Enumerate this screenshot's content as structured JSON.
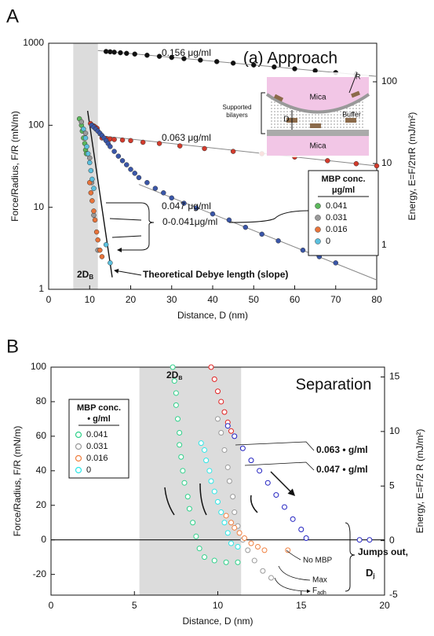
{
  "chart_data": [
    {
      "type": "scatter",
      "panel_label": "A",
      "title": "(a) Approach",
      "xlabel": "Distance, D (nm)",
      "ylabel": "Force/Radius, F/R (mN/m)",
      "y2label": "Energy, E=F/2πR (mJ/m²)",
      "xlim": [
        0,
        80
      ],
      "ylim": [
        1,
        1000
      ],
      "y2lim": [
        0.29,
        296
      ],
      "log_y": true,
      "xticks": [
        0,
        10,
        20,
        30,
        40,
        50,
        60,
        70,
        80
      ],
      "yticks": [
        1,
        10,
        100,
        1000
      ],
      "y2ticks": [
        1,
        10,
        100
      ],
      "shaded_band": [
        6,
        12
      ],
      "marker": "filled",
      "legend": {
        "title": "MBP conc.",
        "subtitle": "μg/ml"
      },
      "series": [
        {
          "name": "0.041",
          "color": "#5cb85c",
          "x": [
            7.5,
            8,
            8.2,
            8.5,
            8.8,
            9,
            9.2
          ],
          "y": [
            120,
            100,
            85,
            70,
            60,
            50,
            45
          ]
        },
        {
          "name": "0.031",
          "color": "#9a9a9a",
          "x": [
            8,
            9,
            10,
            10.5,
            11,
            12
          ],
          "y": [
            110,
            80,
            40,
            20,
            8,
            3
          ]
        },
        {
          "name": "0.016",
          "color": "#e8743b",
          "x": [
            10,
            10.3,
            10.6,
            11,
            11.3,
            11.7,
            12,
            12.5,
            13
          ],
          "y": [
            20,
            15,
            12,
            9,
            7,
            5,
            4,
            3,
            2.5
          ]
        },
        {
          "name": "0",
          "color": "#5bc0de",
          "x": [
            8.5,
            9,
            9.3,
            9.6,
            10,
            10.3,
            10.6,
            11,
            14,
            15
          ],
          "y": [
            90,
            70,
            55,
            45,
            35,
            28,
            22,
            17,
            3.5,
            2.1
          ]
        }
      ],
      "labeled_series": [
        {
          "name": "0.156 μg/ml",
          "color": "#111111",
          "x": [
            14,
            15,
            16,
            17.5,
            19,
            21,
            24,
            27,
            30,
            33,
            37,
            41,
            45,
            50,
            55,
            60,
            65,
            70,
            75
          ],
          "y": [
            794,
            786,
            778,
            766,
            753,
            738,
            714,
            692,
            671,
            649,
            623,
            597,
            572,
            543,
            514,
            488,
            463,
            439,
            416
          ]
        },
        {
          "name": "0.063 μg/ml",
          "color": "#d33b2c",
          "x": [
            10.2,
            10.6,
            11,
            11.4,
            11.8,
            13,
            14,
            15,
            16,
            18,
            20,
            23,
            27,
            32,
            38,
            45,
            52,
            60,
            68,
            75,
            80
          ],
          "y": [
            105,
            100,
            98,
            95,
            92,
            70,
            69,
            68,
            67,
            66,
            65,
            62,
            60,
            56,
            52,
            48,
            45,
            41,
            37,
            34,
            32
          ]
        },
        {
          "name": "0.047 μg/ml",
          "color": "#3a56a8",
          "x": [
            10.5,
            11,
            11.5,
            12,
            12.5,
            13,
            13.5,
            14,
            14.5,
            15,
            16,
            17,
            18,
            19,
            20,
            21,
            22,
            24,
            26,
            28,
            30,
            33,
            36,
            40,
            44,
            48,
            52,
            56,
            62,
            66,
            70
          ],
          "y": [
            100,
            95,
            90,
            85,
            80,
            75,
            70,
            65,
            60,
            55,
            48,
            42,
            37,
            33,
            29,
            26,
            23,
            20,
            17,
            15,
            13,
            11.2,
            9.8,
            8.3,
            7,
            5.7,
            4.7,
            3.9,
            3,
            2.5,
            2.1
          ]
        }
      ],
      "fit_lines": [
        {
          "color": "#888888",
          "x": [
            12,
            80
          ],
          "y": [
            815,
            395
          ]
        },
        {
          "color": "#888888",
          "x": [
            12,
            80
          ],
          "y": [
            75,
            32
          ]
        },
        {
          "color": "#888888",
          "x": [
            22,
            80
          ],
          "y": [
            19,
            1.3
          ]
        },
        {
          "color": "#111111",
          "x": [
            9.5,
            15.5
          ],
          "y": [
            150,
            1.4
          ]
        }
      ],
      "annotations": [
        "0-0.041μg/ml",
        {
          "text": "2D",
          "sub": "B"
        },
        "Theoretical Debye length (slope)"
      ],
      "inset": {
        "labels": [
          "Mica",
          "Supported",
          "bilayers",
          "Buffer",
          "D",
          "R",
          "Mica"
        ]
      }
    },
    {
      "type": "scatter",
      "panel_label": "B",
      "title": "Separation",
      "xlabel": "Distance, D (nm)",
      "ylabel": "Force/Radius, F/R (mN/m)",
      "y2label": "Energy, E=F/2  R (mJ/m²)",
      "xlim": [
        0,
        20
      ],
      "ylim": [
        -32,
        100
      ],
      "y2lim": [
        -5,
        15.9
      ],
      "xticks": [
        0,
        5,
        10,
        15,
        20
      ],
      "yticks": [
        -20,
        0,
        20,
        40,
        60,
        80,
        100
      ],
      "y2ticks": [
        -5,
        0,
        5,
        10,
        15
      ],
      "shaded_band": [
        5.3,
        11.4
      ],
      "hline": 0,
      "marker": "hollow",
      "legend": {
        "title": "MBP conc.",
        "subtitle": "• g/ml"
      },
      "series": [
        {
          "name": "0.041",
          "color": "#2fd18a",
          "x": [
            7.3,
            7.4,
            7.5,
            7.5,
            7.6,
            7.7,
            7.7,
            7.8,
            7.9,
            8.0,
            8.2,
            8.3,
            8.5,
            8.7,
            8.9,
            9.2,
            9.8,
            10.5,
            11.2
          ],
          "y": [
            100,
            92,
            85,
            78,
            70,
            62,
            55,
            48,
            40,
            33,
            25,
            18,
            10,
            2,
            -5,
            -10,
            -12,
            -13,
            -13
          ]
        },
        {
          "name": "0.031",
          "color": "#9a9a9a",
          "x": [
            10.0,
            10.2,
            10.4,
            10.6,
            10.7,
            10.9,
            11.0,
            11.2,
            11.5,
            11.8,
            12.2,
            12.7,
            13.2
          ],
          "y": [
            70,
            62,
            52,
            42,
            34,
            25,
            16,
            8,
            0,
            -6,
            -12,
            -18,
            -22
          ]
        },
        {
          "name": "0.016",
          "color": "#f08040",
          "x": [
            10.5,
            10.8,
            11.0,
            11.3,
            11.6,
            12.0,
            12.4,
            12.8,
            14.2
          ],
          "y": [
            14,
            10,
            7,
            4,
            1,
            -2,
            -4,
            -6,
            -6
          ]
        },
        {
          "name": "0",
          "color": "#2ee6e6",
          "x": [
            9.0,
            9.2,
            9.3,
            9.5,
            9.6,
            9.8,
            10.0,
            10.2,
            10.4,
            10.6,
            10.8,
            11.2
          ],
          "y": [
            56,
            52,
            46,
            40,
            34,
            28,
            22,
            16,
            10,
            4,
            -2,
            -4
          ]
        }
      ],
      "labeled_series": [
        {
          "name": "0.063 • g/ml",
          "color": "#e02020",
          "x": [
            9.6,
            9.8,
            10.0,
            10.2,
            10.4,
            10.6,
            10.8
          ],
          "y": [
            100,
            93,
            86,
            80,
            74,
            68,
            63
          ]
        },
        {
          "name": "0.047 • g/ml",
          "color": "#2020c0",
          "x": [
            10.6,
            11.0,
            11.5,
            12.0,
            12.5,
            13.0,
            13.5,
            14.0,
            14.5,
            15.0,
            15.3,
            18.5,
            19.1
          ],
          "y": [
            66,
            60,
            53,
            46,
            40,
            33,
            26,
            19,
            12,
            6,
            1,
            0,
            0
          ]
        }
      ],
      "annotations": [
        {
          "text": "2D",
          "sub": "B"
        },
        "No MBP",
        "Max",
        {
          "text": "F",
          "sub": "adh"
        },
        "Jumps out,",
        {
          "text": "D",
          "sub": "j"
        }
      ]
    }
  ]
}
